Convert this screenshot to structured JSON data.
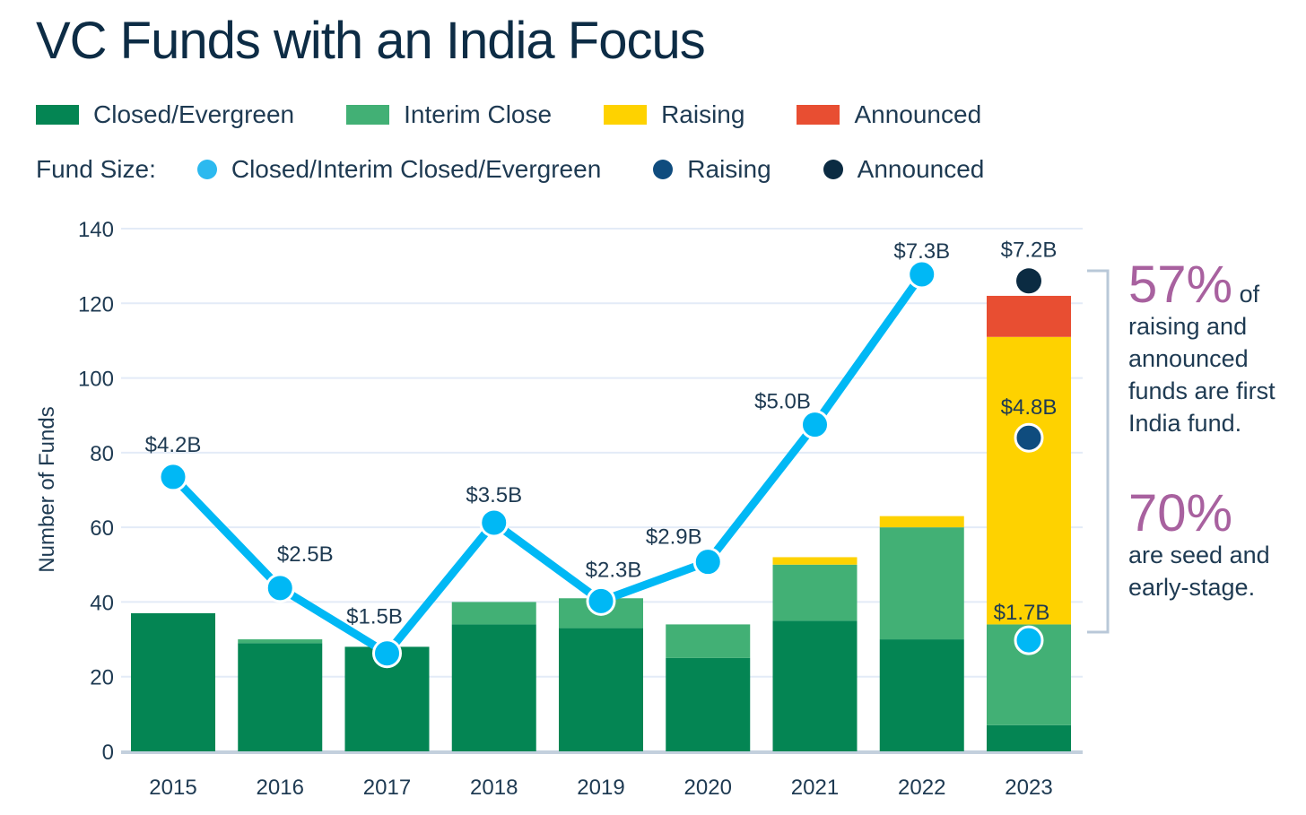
{
  "title": "VC Funds with an India Focus",
  "legend": {
    "bars": [
      {
        "label": "Closed/Evergreen",
        "color": "#048553"
      },
      {
        "label": "Interim Close",
        "color": "#42b075"
      },
      {
        "label": "Raising",
        "color": "#fed200"
      },
      {
        "label": "Announced",
        "color": "#e84e32"
      }
    ],
    "fund_size_label": "Fund Size:",
    "dots": [
      {
        "label": "Closed/Interim Closed/Evergreen",
        "color": "#00b8f5"
      },
      {
        "label": "Raising",
        "color": "#0f4c7e"
      },
      {
        "label": "Announced",
        "color": "#0b2b42"
      }
    ]
  },
  "annotations": {
    "a1_big": "57%",
    "a1_small": "of",
    "a1_text": "raising and announced funds are first India fund.",
    "a2_big": "70%",
    "a2_text": "are seed and early-stage."
  },
  "chart_data": {
    "type": "bar",
    "title": "VC Funds with an India Focus",
    "ylabel": "Number of Funds",
    "xlabel": "",
    "ylim": [
      0,
      140
    ],
    "yticks": [
      0,
      20,
      40,
      60,
      80,
      100,
      120,
      140
    ],
    "grid": true,
    "legend_placement": "top",
    "categories": [
      "2015",
      "2016",
      "2017",
      "2018",
      "2019",
      "2020",
      "2021",
      "2022",
      "2023"
    ],
    "series": [
      {
        "name": "Closed/Evergreen",
        "values": [
          37,
          29,
          28,
          34,
          33,
          25,
          35,
          30,
          7
        ]
      },
      {
        "name": "Interim Close",
        "values": [
          0,
          1,
          0,
          6,
          8,
          9,
          15,
          30,
          27
        ]
      },
      {
        "name": "Raising",
        "values": [
          0,
          0,
          0,
          0,
          0,
          0,
          2,
          3,
          77
        ]
      },
      {
        "name": "Announced",
        "values": [
          0,
          0,
          0,
          0,
          0,
          0,
          0,
          0,
          11
        ]
      }
    ],
    "fund_size_line": {
      "name": "Closed/Interim Closed/Evergreen fund size ($B)",
      "values": [
        4.2,
        2.5,
        1.5,
        3.5,
        2.3,
        2.9,
        5.0,
        7.3,
        1.7
      ],
      "labels": [
        "$4.2B",
        "$2.5B",
        "$1.5B",
        "$3.5B",
        "$2.3B",
        "$2.9B",
        "$5.0B",
        "$7.3B",
        "$1.7B"
      ]
    },
    "fund_size_2023_raising": {
      "value": 4.8,
      "label": "$4.8B"
    },
    "fund_size_2023_announced": {
      "value": 7.2,
      "label": "$7.2B"
    }
  }
}
